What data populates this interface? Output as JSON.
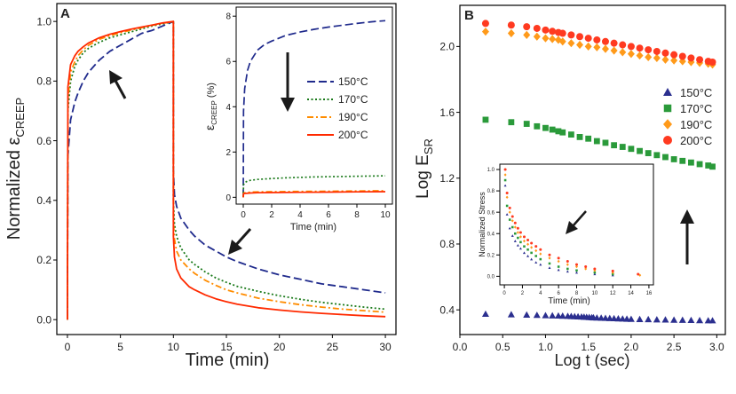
{
  "panel_labels": {
    "a": "A",
    "b": "B"
  },
  "colors": {
    "c150": "#1f2a8c",
    "c170": "#1a7a1a",
    "c190": "#ff8c00",
    "c200": "#ff2a00",
    "b150": "#2b2f8f",
    "b170": "#2a9a3a",
    "b190": "#ff9a1a",
    "b200": "#ff3a20",
    "arrow": "#1a1a1a",
    "axis": "#000000"
  },
  "chart_data": [
    {
      "id": "A_main",
      "type": "line",
      "title": "",
      "xlabel": "Time (min)",
      "ylabel": "Normalized ε",
      "ylabel_sub": "CREEP",
      "xlim": [
        -1,
        31
      ],
      "ylim": [
        -0.05,
        1.06
      ],
      "xticks": [
        "0",
        "5",
        "10",
        "15",
        "20",
        "25",
        "30"
      ],
      "yticks": [
        "0.0",
        "0.2",
        "0.4",
        "0.6",
        "0.8",
        "1.0"
      ],
      "series": [
        {
          "name": "150°C",
          "style": "dashed",
          "color_key": "c150",
          "x": [
            0,
            0.05,
            0.3,
            0.7,
            1,
            1.5,
            2,
            3,
            4,
            5,
            6,
            7,
            8,
            9,
            10,
            10,
            10.1,
            10.3,
            10.7,
            11.5,
            12,
            13,
            14,
            15,
            16,
            18,
            20,
            22,
            24,
            26,
            28,
            30
          ],
          "y": [
            0,
            0.55,
            0.67,
            0.73,
            0.76,
            0.8,
            0.83,
            0.87,
            0.9,
            0.92,
            0.94,
            0.96,
            0.97,
            0.985,
            1.0,
            0.5,
            0.42,
            0.38,
            0.34,
            0.3,
            0.28,
            0.25,
            0.23,
            0.21,
            0.195,
            0.17,
            0.15,
            0.135,
            0.12,
            0.11,
            0.1,
            0.09
          ]
        },
        {
          "name": "170°C",
          "style": "dotted",
          "color_key": "c170",
          "x": [
            0,
            0.05,
            0.3,
            0.7,
            1,
            1.5,
            2,
            3,
            4,
            5,
            6,
            7,
            8,
            9,
            10,
            10,
            10.1,
            10.3,
            10.7,
            11.5,
            12,
            13,
            14,
            15,
            16,
            18,
            20,
            22,
            24,
            26,
            28,
            30
          ],
          "y": [
            0,
            0.7,
            0.8,
            0.85,
            0.87,
            0.895,
            0.91,
            0.93,
            0.945,
            0.955,
            0.965,
            0.975,
            0.985,
            0.992,
            1.0,
            0.4,
            0.32,
            0.28,
            0.24,
            0.2,
            0.185,
            0.16,
            0.14,
            0.125,
            0.112,
            0.095,
            0.08,
            0.068,
            0.058,
            0.05,
            0.042,
            0.035
          ]
        },
        {
          "name": "190°C",
          "style": "dashdot",
          "color_key": "c190",
          "x": [
            0,
            0.05,
            0.3,
            0.7,
            1,
            1.5,
            2,
            3,
            4,
            5,
            6,
            7,
            8,
            9,
            10,
            10,
            10.1,
            10.3,
            10.7,
            11.5,
            12,
            13,
            14,
            15,
            16,
            18,
            20,
            22,
            24,
            26,
            28,
            30
          ],
          "y": [
            0,
            0.74,
            0.83,
            0.865,
            0.885,
            0.905,
            0.92,
            0.94,
            0.952,
            0.962,
            0.971,
            0.979,
            0.987,
            0.994,
            1.0,
            0.33,
            0.27,
            0.23,
            0.2,
            0.17,
            0.155,
            0.132,
            0.115,
            0.1,
            0.09,
            0.072,
            0.06,
            0.05,
            0.042,
            0.035,
            0.03,
            0.025
          ]
        },
        {
          "name": "200°C",
          "style": "solid",
          "color_key": "c200",
          "x": [
            0,
            0.05,
            0.3,
            0.7,
            1,
            1.5,
            2,
            3,
            4,
            5,
            6,
            7,
            8,
            9,
            10,
            10,
            10.1,
            10.3,
            10.7,
            11.5,
            12,
            13,
            14,
            15,
            16,
            18,
            20,
            22,
            24,
            26,
            28,
            30
          ],
          "y": [
            0,
            0.78,
            0.855,
            0.885,
            0.9,
            0.915,
            0.928,
            0.945,
            0.957,
            0.966,
            0.974,
            0.981,
            0.988,
            0.995,
            1.0,
            0.28,
            0.21,
            0.17,
            0.14,
            0.11,
            0.1,
            0.083,
            0.07,
            0.06,
            0.052,
            0.04,
            0.032,
            0.026,
            0.021,
            0.017,
            0.013,
            0.01
          ]
        }
      ]
    },
    {
      "id": "A_inset",
      "type": "line",
      "title": "",
      "xlabel": "Time (min)",
      "ylabel": "ε",
      "ylabel_sub": "CREEP",
      "ylabel_unit": " (%)",
      "xlim": [
        -0.5,
        10.5
      ],
      "ylim": [
        -0.3,
        8.4
      ],
      "xticks": [
        "0",
        "2",
        "4",
        "6",
        "8",
        "10"
      ],
      "yticks": [
        "0",
        "2",
        "4",
        "6",
        "8"
      ],
      "legend": [
        "150°C",
        "170°C",
        "190°C",
        "200°C"
      ],
      "legend_position": "center-right",
      "series": [
        {
          "name": "150°C",
          "style": "dashed",
          "color_key": "c150",
          "x": [
            0,
            0.02,
            0.1,
            0.3,
            0.5,
            1,
            1.5,
            2,
            3,
            4,
            5,
            6,
            7,
            8,
            9,
            10
          ],
          "y": [
            0,
            3.8,
            4.8,
            5.6,
            6.0,
            6.5,
            6.75,
            6.9,
            7.15,
            7.3,
            7.42,
            7.52,
            7.6,
            7.68,
            7.75,
            7.8
          ]
        },
        {
          "name": "170°C",
          "style": "dotted",
          "color_key": "c170",
          "x": [
            0,
            0.02,
            0.1,
            0.3,
            0.5,
            1,
            2,
            3,
            4,
            5,
            6,
            7,
            8,
            9,
            10
          ],
          "y": [
            0,
            0.55,
            0.65,
            0.72,
            0.75,
            0.79,
            0.83,
            0.86,
            0.88,
            0.9,
            0.91,
            0.92,
            0.93,
            0.94,
            0.95
          ]
        },
        {
          "name": "190°C",
          "style": "dashdot",
          "color_key": "c190",
          "x": [
            0,
            0.02,
            0.1,
            0.5,
            1,
            2,
            4,
            6,
            8,
            10
          ],
          "y": [
            0,
            0.18,
            0.2,
            0.23,
            0.24,
            0.25,
            0.26,
            0.27,
            0.28,
            0.29
          ]
        },
        {
          "name": "200°C",
          "style": "solid",
          "color_key": "c200",
          "x": [
            0,
            0.02,
            0.1,
            0.5,
            1,
            2,
            4,
            6,
            8,
            10
          ],
          "y": [
            0,
            0.15,
            0.17,
            0.19,
            0.2,
            0.21,
            0.22,
            0.23,
            0.24,
            0.25
          ]
        }
      ]
    },
    {
      "id": "B_main",
      "type": "scatter",
      "title": "",
      "xlabel": "Log t (sec)",
      "ylabel": "Log E",
      "ylabel_sub": "SR",
      "xlim": [
        0,
        3.1
      ],
      "ylim": [
        0.25,
        2.25
      ],
      "xticks": [
        "0.0",
        "0.5",
        "1.0",
        "1.5",
        "2.0",
        "2.5",
        "3.0"
      ],
      "yticks": [
        "0.4",
        "0.8",
        "1.2",
        "1.6",
        "2.0"
      ],
      "legend": [
        "150°C",
        "170°C",
        "190°C",
        "200°C"
      ],
      "legend_position": "right",
      "series": [
        {
          "name": "150°C",
          "marker": "triangle",
          "color_key": "b150",
          "x": [
            0.3,
            0.6,
            0.78,
            0.9,
            1.0,
            1.08,
            1.15,
            1.2,
            1.26,
            1.3,
            1.34,
            1.38,
            1.42,
            1.45,
            1.48,
            1.51,
            1.54,
            1.56,
            1.6,
            1.65,
            1.7,
            1.75,
            1.8,
            1.85,
            1.9,
            1.95,
            2.0,
            2.1,
            2.2,
            2.3,
            2.4,
            2.5,
            2.6,
            2.7,
            2.8,
            2.9,
            2.95
          ],
          "y": [
            0.375,
            0.372,
            0.37,
            0.368,
            0.366,
            0.365,
            0.364,
            0.363,
            0.362,
            0.361,
            0.36,
            0.359,
            0.358,
            0.357,
            0.356,
            0.355,
            0.354,
            0.353,
            0.352,
            0.351,
            0.35,
            0.349,
            0.348,
            0.347,
            0.346,
            0.345,
            0.344,
            0.343,
            0.342,
            0.341,
            0.34,
            0.339,
            0.338,
            0.337,
            0.336,
            0.335,
            0.335
          ]
        },
        {
          "name": "170°C",
          "marker": "square",
          "color_key": "b170",
          "x": [
            0.3,
            0.6,
            0.78,
            0.9,
            1.0,
            1.08,
            1.15,
            1.2,
            1.3,
            1.4,
            1.5,
            1.6,
            1.7,
            1.8,
            1.9,
            2.0,
            2.1,
            2.2,
            2.3,
            2.4,
            2.5,
            2.6,
            2.7,
            2.8,
            2.9,
            2.95
          ],
          "y": [
            1.555,
            1.54,
            1.53,
            1.515,
            1.505,
            1.495,
            1.485,
            1.478,
            1.465,
            1.45,
            1.44,
            1.425,
            1.415,
            1.4,
            1.39,
            1.378,
            1.365,
            1.352,
            1.34,
            1.328,
            1.315,
            1.305,
            1.295,
            1.285,
            1.277,
            1.27
          ]
        },
        {
          "name": "190°C",
          "marker": "diamond",
          "color_key": "b190",
          "x": [
            0.3,
            0.6,
            0.78,
            0.9,
            1.0,
            1.08,
            1.15,
            1.2,
            1.3,
            1.4,
            1.5,
            1.6,
            1.7,
            1.8,
            1.9,
            2.0,
            2.1,
            2.2,
            2.3,
            2.4,
            2.5,
            2.6,
            2.7,
            2.8,
            2.9,
            2.95
          ],
          "y": [
            2.09,
            2.08,
            2.07,
            2.06,
            2.05,
            2.045,
            2.04,
            2.03,
            2.02,
            2.01,
            2.0,
            1.995,
            1.985,
            1.975,
            1.965,
            1.955,
            1.945,
            1.935,
            1.93,
            1.92,
            1.915,
            1.91,
            1.905,
            1.9,
            1.895,
            1.89
          ]
        },
        {
          "name": "200°C",
          "marker": "circle",
          "color_key": "b200",
          "x": [
            0.3,
            0.6,
            0.78,
            0.9,
            1.0,
            1.08,
            1.15,
            1.2,
            1.3,
            1.4,
            1.5,
            1.6,
            1.7,
            1.8,
            1.9,
            2.0,
            2.1,
            2.2,
            2.3,
            2.4,
            2.5,
            2.6,
            2.7,
            2.8,
            2.9,
            2.95
          ],
          "y": [
            2.14,
            2.13,
            2.12,
            2.11,
            2.1,
            2.092,
            2.085,
            2.08,
            2.07,
            2.06,
            2.05,
            2.04,
            2.03,
            2.02,
            2.01,
            2.0,
            1.99,
            1.98,
            1.97,
            1.96,
            1.95,
            1.94,
            1.93,
            1.92,
            1.91,
            1.905
          ]
        }
      ]
    },
    {
      "id": "B_inset",
      "type": "scatter",
      "title": "",
      "xlabel": "Time (min)",
      "ylabel": "Normalized Stress",
      "xlim": [
        -0.5,
        16.5
      ],
      "ylim": [
        -0.08,
        1.05
      ],
      "xticks": [
        "0",
        "2",
        "4",
        "6",
        "8",
        "10",
        "12",
        "14",
        "16"
      ],
      "yticks": [
        "0.0",
        "0.2",
        "0.4",
        "0.6",
        "0.8",
        "1.0"
      ],
      "series": [
        {
          "name": "150°C",
          "marker": "triangle",
          "color_key": "b150",
          "x": [
            0.1,
            0.3,
            0.6,
            0.9,
            1.2,
            1.5,
            1.8,
            2.2,
            2.6,
            3,
            3.5,
            4,
            5,
            6,
            7,
            8,
            10,
            12
          ],
          "y": [
            0.85,
            0.58,
            0.45,
            0.38,
            0.33,
            0.29,
            0.26,
            0.22,
            0.19,
            0.16,
            0.13,
            0.11,
            0.08,
            0.06,
            0.045,
            0.035,
            0.02,
            0.01
          ]
        },
        {
          "name": "170°C",
          "marker": "square",
          "color_key": "b170",
          "x": [
            0.1,
            0.3,
            0.6,
            0.9,
            1.2,
            1.5,
            1.8,
            2.2,
            2.6,
            3,
            3.5,
            4,
            5,
            6,
            7,
            8,
            10,
            12
          ],
          "y": [
            0.9,
            0.66,
            0.53,
            0.46,
            0.4,
            0.36,
            0.32,
            0.28,
            0.25,
            0.22,
            0.19,
            0.16,
            0.12,
            0.09,
            0.07,
            0.055,
            0.035,
            0.02
          ]
        },
        {
          "name": "190°C",
          "marker": "diamond",
          "color_key": "b190",
          "x": [
            0.1,
            0.3,
            0.6,
            0.9,
            1.2,
            1.5,
            1.8,
            2.2,
            2.6,
            3,
            3.5,
            4,
            5,
            6,
            7,
            8,
            9,
            10,
            12,
            15
          ],
          "y": [
            0.95,
            0.74,
            0.6,
            0.52,
            0.46,
            0.41,
            0.37,
            0.33,
            0.3,
            0.27,
            0.24,
            0.21,
            0.17,
            0.14,
            0.11,
            0.09,
            0.07,
            0.055,
            0.035,
            0.01
          ]
        },
        {
          "name": "200°C",
          "marker": "circle",
          "color_key": "b200",
          "x": [
            0.1,
            0.3,
            0.6,
            0.9,
            1.2,
            1.5,
            1.8,
            2.2,
            2.6,
            3,
            3.5,
            4,
            5,
            6,
            7,
            8,
            9,
            10,
            12,
            14.8
          ],
          "y": [
            1.0,
            0.78,
            0.64,
            0.56,
            0.5,
            0.45,
            0.41,
            0.37,
            0.34,
            0.31,
            0.28,
            0.25,
            0.2,
            0.17,
            0.14,
            0.11,
            0.09,
            0.07,
            0.05,
            0.02
          ]
        }
      ]
    }
  ]
}
